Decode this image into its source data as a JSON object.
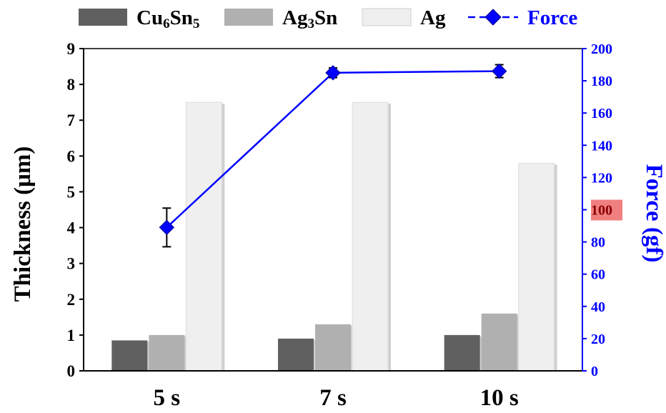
{
  "chart_data": {
    "type": "bar",
    "categories": [
      "5 s",
      "7 s",
      "10 s"
    ],
    "series": [
      {
        "name_main": "Cu",
        "name_sub1": "6",
        "name_mid": "Sn",
        "name_sub2": "5",
        "type": "bar",
        "axis": "left",
        "values": [
          0.85,
          0.9,
          1.0
        ],
        "color": "#606060"
      },
      {
        "name_main": "Ag",
        "name_sub1": "3",
        "name_mid": "Sn",
        "name_sub2": "",
        "type": "bar",
        "axis": "left",
        "values": [
          1.0,
          1.3,
          1.6
        ],
        "color": "#b0b0b0"
      },
      {
        "name": "Ag",
        "type": "bar",
        "axis": "left",
        "values": [
          7.5,
          7.5,
          5.8
        ],
        "color": "#efefef"
      },
      {
        "name": "Force",
        "type": "line",
        "axis": "right",
        "values": [
          89,
          185,
          186
        ],
        "errors": [
          12,
          3,
          4
        ],
        "color": "#0000ff"
      }
    ],
    "ylabel": "Thickness (μm)",
    "y2label": "Force (gf)",
    "ylim": [
      0,
      9
    ],
    "y2lim": [
      0,
      200
    ],
    "yticks": [
      0,
      1,
      2,
      3,
      4,
      5,
      6,
      7,
      8,
      9
    ],
    "y2ticks": [
      0,
      20,
      40,
      60,
      80,
      100,
      120,
      140,
      160,
      180,
      200
    ],
    "highlight_tick": 100,
    "highlight_color": "#f08080",
    "axis2_color": "#0000ff",
    "legend_position": "top",
    "grid": false
  }
}
